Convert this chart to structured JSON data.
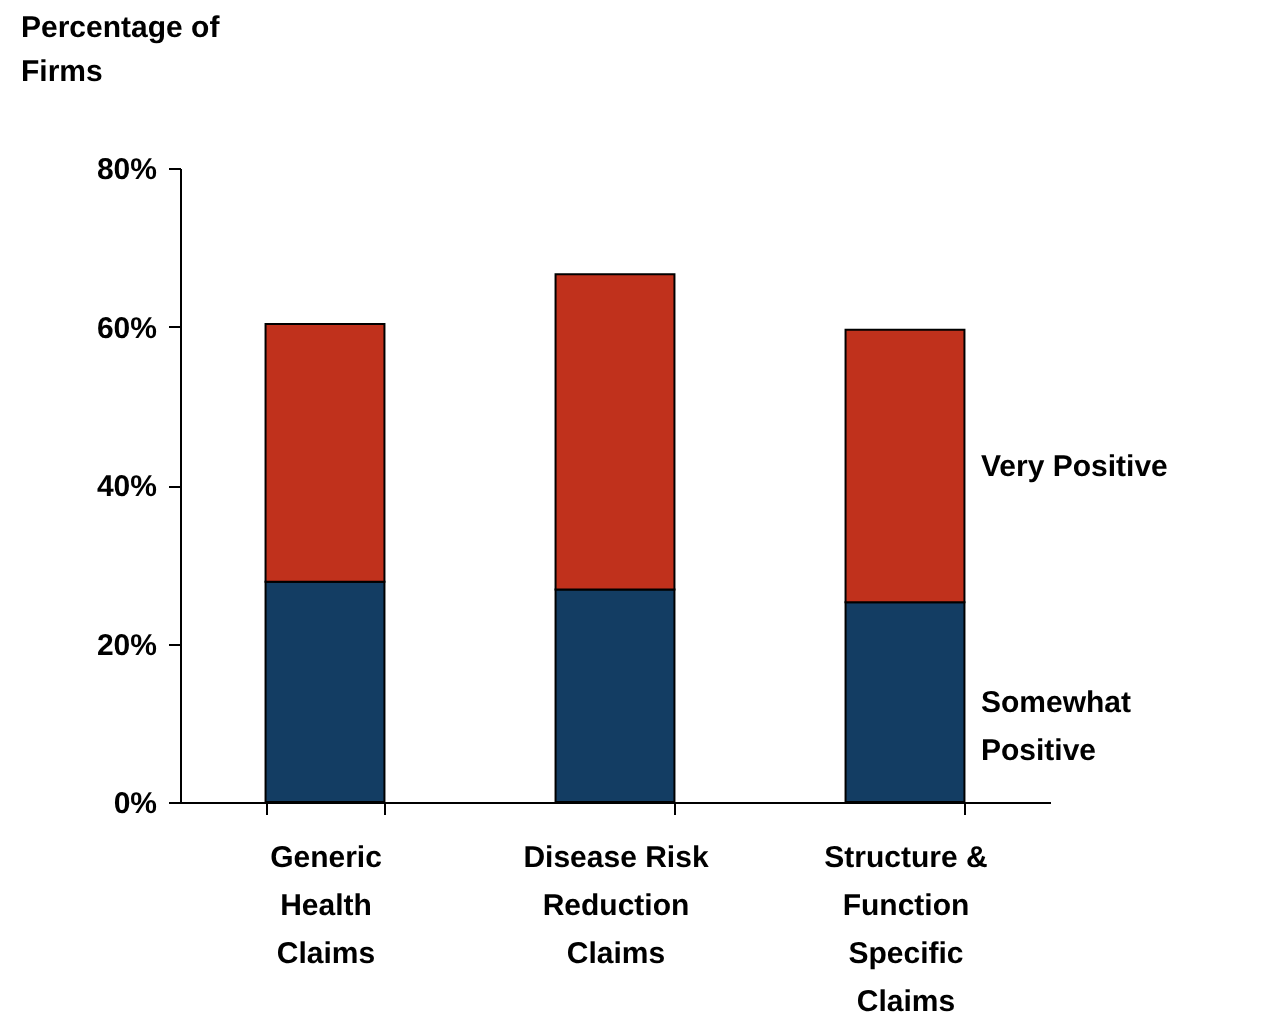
{
  "chart_data": {
    "type": "bar",
    "stacked": true,
    "ylabel": "Percentage of Firms",
    "categories": [
      "Generic Health Claims",
      "Disease Risk Reduction Claims",
      "Structure & Function Specific Claims"
    ],
    "series": [
      {
        "name": "Somewhat Positive",
        "color": "#133d63",
        "values": [
          27.8,
          26.8,
          25.2
        ]
      },
      {
        "name": "Very Positive",
        "color": "#c0311c",
        "values": [
          32.5,
          39.8,
          34.4
        ]
      }
    ],
    "ylim": [
      0,
      80
    ],
    "yticks": [
      {
        "value": 0,
        "label": "0%"
      },
      {
        "value": 20,
        "label": "20%"
      },
      {
        "value": 40,
        "label": "40%"
      },
      {
        "value": 60,
        "label": "60%"
      },
      {
        "value": 80,
        "label": "80%"
      }
    ],
    "grid": false
  }
}
